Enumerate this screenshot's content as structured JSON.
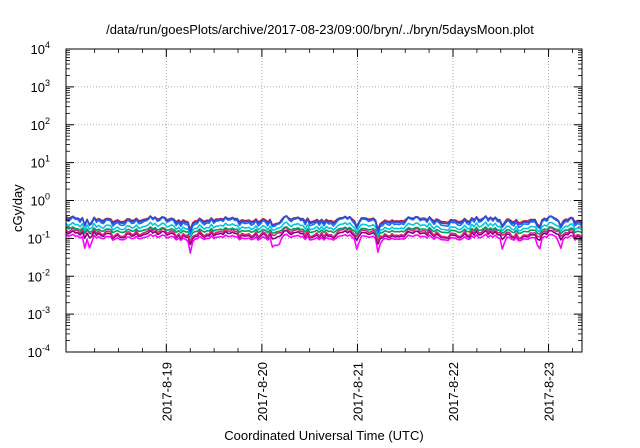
{
  "chart_data": {
    "type": "line",
    "title": "/data/run/goesPlots/archive/2017-08-23/09:00/bryn/../bryn/5daysMoon.plot",
    "xlabel": "Coordinated Universal Time (UTC)",
    "ylabel": "cGy/day",
    "yscale": "log",
    "ylim_exponents": [
      -4,
      4
    ],
    "y_tick_base": "10",
    "y_tick_exponents": [
      "-4",
      "-3",
      "-2",
      "-1",
      "0",
      "1",
      "2",
      "3",
      "4"
    ],
    "x_range_days": [
      -0.05,
      5.35
    ],
    "x_tick_labels": [
      "2017-8-19",
      "2017-8-20",
      "2017-8-21",
      "2017-8-22",
      "2017-8-23"
    ],
    "x_tick_days": [
      1,
      2,
      3,
      4,
      5
    ],
    "grid": true,
    "legend": "none",
    "series": [
      {
        "color": "#ff00ff",
        "level": 0.105,
        "dips": 1.0
      },
      {
        "color": "#800080",
        "level": 0.125,
        "dips": 0.5
      },
      {
        "color": "#e0207a",
        "level": 0.14,
        "dips": 0.35
      },
      {
        "color": "#00a060",
        "level": 0.165,
        "dips": 0.35
      },
      {
        "color": "#00c8d8",
        "level": 0.205,
        "dips": 0.45
      },
      {
        "color": "#1e6fff",
        "level": 0.275,
        "dips": 0.6
      },
      {
        "color": "#d81020",
        "level": 0.315,
        "dips": 0.6
      },
      {
        "color": "#2850d8",
        "level": 0.3,
        "dips": 0.6
      }
    ]
  }
}
